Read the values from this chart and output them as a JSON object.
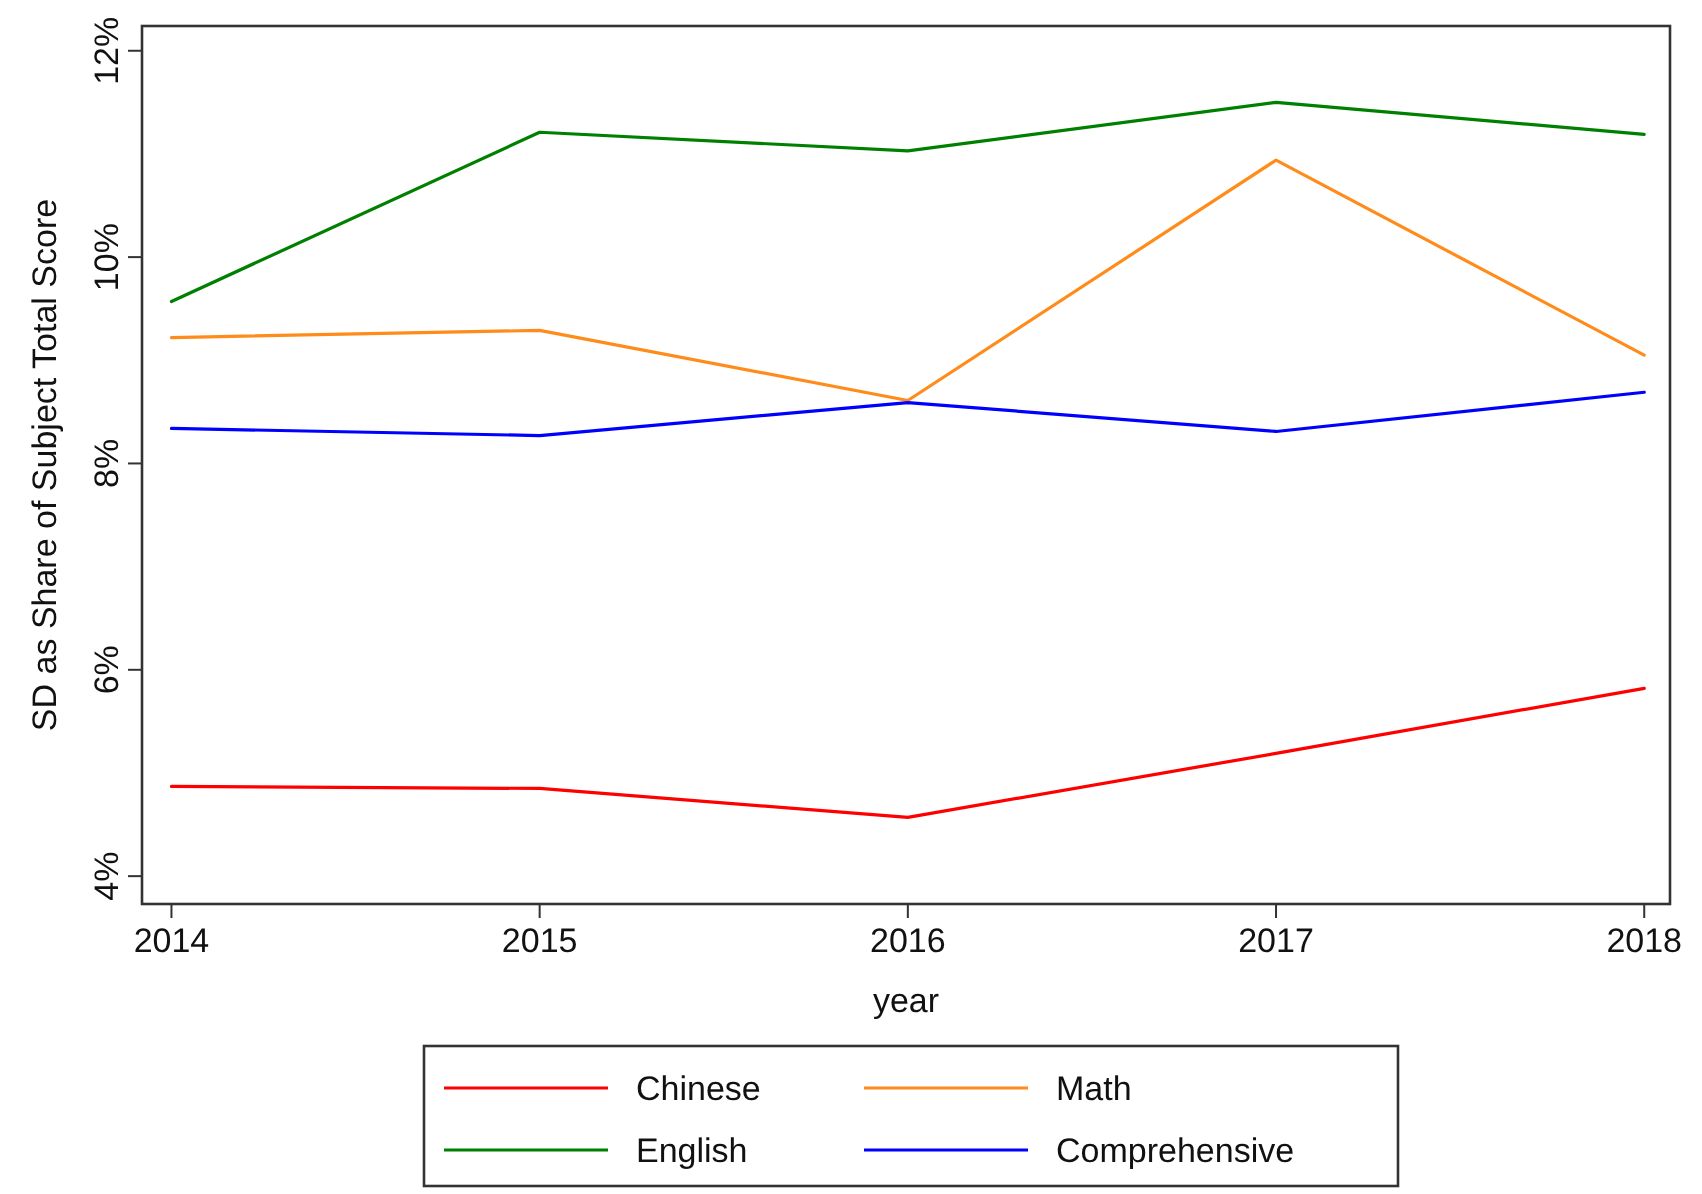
{
  "chart_data": {
    "type": "line",
    "xlabel": "year",
    "ylabel": "SD as Share of Subject Total Score",
    "x": [
      2014,
      2015,
      2016,
      2017,
      2018
    ],
    "series": [
      {
        "name": "Chinese",
        "color": "#ff0000",
        "values": [
          4.87,
          4.85,
          4.57,
          5.19,
          5.82
        ]
      },
      {
        "name": "Math",
        "color": "#ff8c1a",
        "values": [
          9.22,
          9.29,
          8.61,
          10.94,
          9.05
        ]
      },
      {
        "name": "English",
        "color": "#008000",
        "values": [
          9.57,
          11.21,
          11.03,
          11.5,
          11.19
        ]
      },
      {
        "name": "Comprehensive",
        "color": "#0000ff",
        "values": [
          8.34,
          8.27,
          8.59,
          8.31,
          8.69
        ]
      }
    ],
    "xlim": [
      2013.92,
      2018.07
    ],
    "xticks": [
      2014,
      2015,
      2016,
      2017,
      2018
    ],
    "ylim": [
      3.73,
      12.24
    ],
    "yticks": [
      {
        "value": 4,
        "label": "4%"
      },
      {
        "value": 6,
        "label": "6%"
      },
      {
        "value": 8,
        "label": "8%"
      },
      {
        "value": 10,
        "label": "10%"
      },
      {
        "value": 12,
        "label": "12%"
      }
    ],
    "grid": false,
    "legend": "bottom",
    "marker": "none",
    "line_style": "solid"
  }
}
